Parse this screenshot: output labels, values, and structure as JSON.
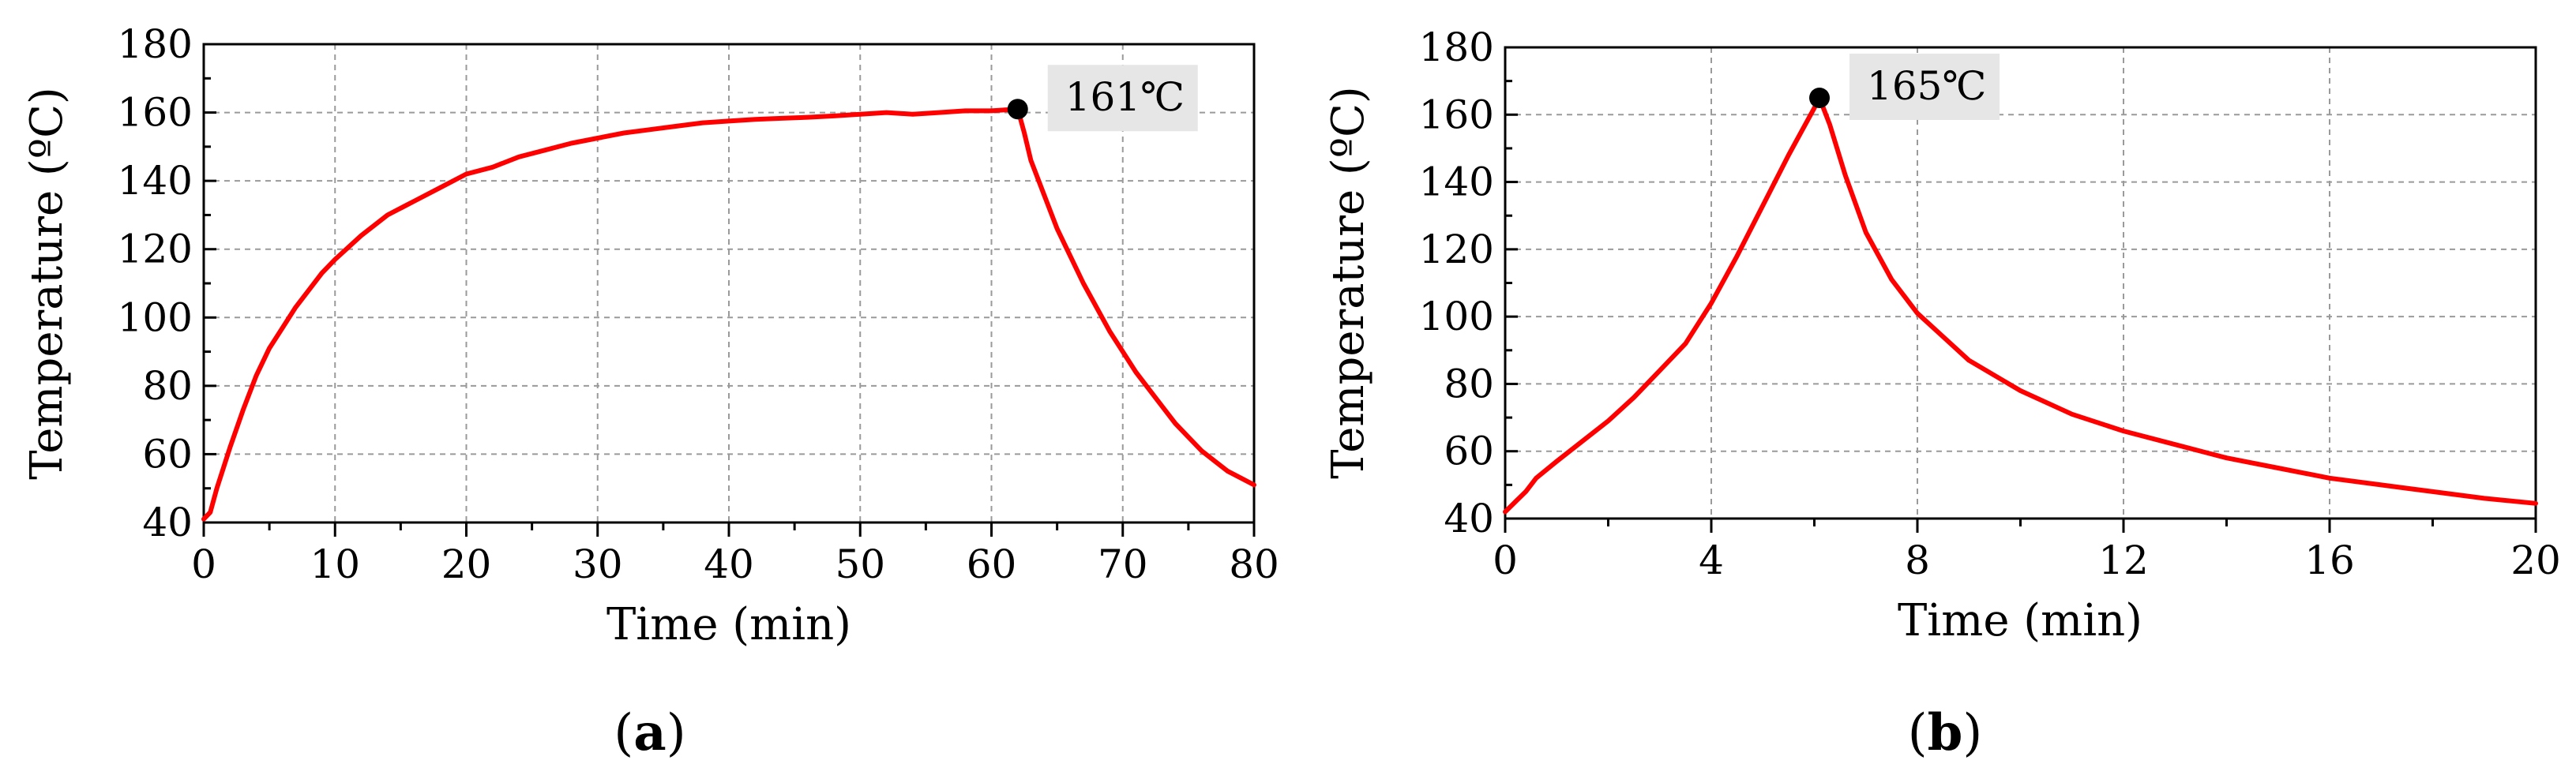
{
  "chart_data": [
    {
      "type": "line",
      "panel_label": {
        "open": "(",
        "letter": "a",
        "close": ")"
      },
      "xlabel": "Time (min)",
      "ylabel": "Temperature (ºC)",
      "xlim": [
        0,
        80
      ],
      "ylim": [
        40,
        180
      ],
      "xticks": [
        0,
        10,
        20,
        30,
        40,
        50,
        60,
        70,
        80
      ],
      "yticks": [
        40,
        60,
        80,
        100,
        120,
        140,
        160,
        180
      ],
      "grid": true,
      "line_color": "#ff0000",
      "series": [
        {
          "x": [
            0,
            0.5,
            1,
            2,
            3,
            4,
            5,
            6,
            7,
            8,
            9,
            10,
            12,
            14,
            16,
            18,
            20,
            22,
            24,
            26,
            28,
            30,
            32,
            34,
            36,
            38,
            40,
            42,
            44,
            46,
            48,
            50,
            52,
            54,
            56,
            58,
            60,
            62,
            62.5,
            63,
            64,
            65,
            66,
            67,
            68,
            69,
            70,
            71,
            72,
            73,
            74,
            75,
            76,
            77,
            78,
            79,
            80
          ],
          "y": [
            41,
            43,
            50,
            62,
            73,
            83,
            91,
            97,
            103,
            108,
            113,
            117,
            124,
            130,
            134,
            138,
            142,
            144,
            147,
            149,
            151,
            152.5,
            154,
            155,
            156,
            157,
            157.5,
            158,
            158.3,
            158.6,
            159,
            159.5,
            160,
            159.5,
            160,
            160.5,
            160.5,
            161,
            154,
            146,
            136,
            126,
            118,
            110,
            103,
            96,
            90,
            84,
            79,
            74,
            69,
            65,
            61,
            58,
            55,
            53,
            51
          ]
        }
      ],
      "annotation": {
        "x": 62,
        "y": 161,
        "label": "161℃"
      }
    },
    {
      "type": "line",
      "panel_label": {
        "open": "(",
        "letter": "b",
        "close": ")"
      },
      "xlabel": "Time (min)",
      "ylabel": "Temperature (ºC)",
      "xlim": [
        0,
        20
      ],
      "ylim": [
        40,
        180
      ],
      "xticks": [
        0,
        4,
        8,
        12,
        16,
        20
      ],
      "yticks": [
        40,
        60,
        80,
        100,
        120,
        140,
        160,
        180
      ],
      "grid": true,
      "line_color": "#ff0000",
      "series": [
        {
          "x": [
            0,
            0.2,
            0.4,
            0.6,
            1,
            1.5,
            2,
            2.5,
            3,
            3.5,
            4,
            4.5,
            5,
            5.5,
            6,
            6.1,
            6.3,
            6.6,
            7,
            7.5,
            8,
            8.5,
            9,
            10,
            11,
            12,
            13,
            14,
            15,
            16,
            17,
            18,
            19,
            20
          ],
          "y": [
            42,
            45,
            48,
            52,
            57,
            63,
            69,
            76,
            84,
            92,
            104,
            118,
            133,
            148,
            162,
            165,
            157,
            142,
            125,
            111,
            101,
            94,
            87,
            78,
            71,
            66,
            62,
            58,
            55,
            52,
            50,
            48,
            46,
            44.5
          ]
        }
      ],
      "annotation": {
        "x": 6.1,
        "y": 165,
        "label": "165℃"
      }
    }
  ]
}
